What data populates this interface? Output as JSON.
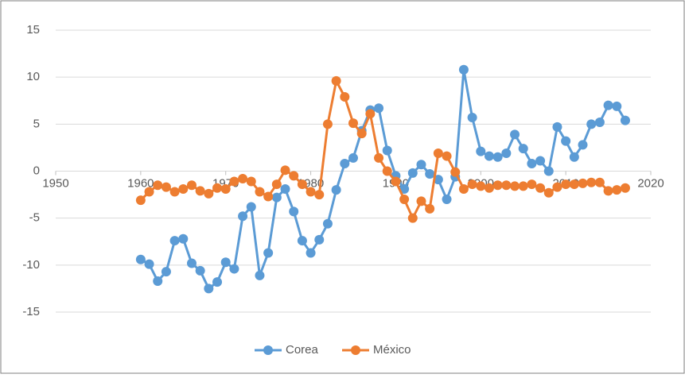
{
  "chart_data": {
    "type": "line",
    "x": [
      1960,
      1961,
      1962,
      1963,
      1964,
      1965,
      1966,
      1967,
      1968,
      1969,
      1970,
      1971,
      1972,
      1973,
      1974,
      1975,
      1976,
      1977,
      1978,
      1979,
      1980,
      1981,
      1982,
      1983,
      1984,
      1985,
      1986,
      1987,
      1988,
      1989,
      1990,
      1991,
      1992,
      1993,
      1994,
      1995,
      1996,
      1997,
      1998,
      1999,
      2000,
      2001,
      2002,
      2003,
      2004,
      2005,
      2006,
      2007,
      2008,
      2009,
      2010,
      2011,
      2012,
      2013,
      2014,
      2015,
      2016,
      2017
    ],
    "series": [
      {
        "name": "Corea",
        "color": "#5b9bd5",
        "values": [
          -9.4,
          -9.9,
          -11.7,
          -10.7,
          -7.4,
          -7.2,
          -9.8,
          -10.6,
          -12.5,
          -11.8,
          -9.7,
          -10.4,
          -4.8,
          -3.8,
          -11.1,
          -8.7,
          -2.8,
          -1.9,
          -4.3,
          -7.4,
          -8.7,
          -7.3,
          -5.6,
          -2.0,
          0.8,
          1.4,
          4.3,
          6.5,
          6.7,
          2.2,
          -0.5,
          -1.9,
          -0.2,
          0.7,
          -0.3,
          -0.9,
          -3.0,
          -0.6,
          10.8,
          5.7,
          2.1,
          1.6,
          1.5,
          1.9,
          3.9,
          2.4,
          0.8,
          1.1,
          0.0,
          4.7,
          3.2,
          1.5,
          2.8,
          5.0,
          5.2,
          7.0,
          6.9,
          5.4
        ]
      },
      {
        "name": "México",
        "color": "#ed7d31",
        "values": [
          -3.1,
          -2.2,
          -1.5,
          -1.7,
          -2.2,
          -1.9,
          -1.5,
          -2.1,
          -2.4,
          -1.8,
          -1.9,
          -1.1,
          -0.8,
          -1.1,
          -2.2,
          -2.7,
          -1.4,
          0.1,
          -0.5,
          -1.4,
          -2.2,
          -2.5,
          5.0,
          9.6,
          7.9,
          5.1,
          4.0,
          6.1,
          1.4,
          0.0,
          -1.1,
          -3.0,
          -5.0,
          -3.2,
          -4.0,
          1.9,
          1.6,
          -0.1,
          -1.9,
          -1.4,
          -1.6,
          -1.8,
          -1.5,
          -1.5,
          -1.6,
          -1.6,
          -1.4,
          -1.8,
          -2.3,
          -1.7,
          -1.4,
          -1.4,
          -1.3,
          -1.2,
          -1.2,
          -2.1,
          -2.0,
          -1.8
        ]
      }
    ],
    "xlim": [
      1950,
      2020
    ],
    "xticks": [
      1950,
      1960,
      1970,
      1980,
      1990,
      2000,
      2010,
      2020
    ],
    "ylim": [
      -15,
      15
    ],
    "yticks": [
      -15,
      -10,
      -5,
      0,
      5,
      10,
      15
    ],
    "grid": true,
    "legend": "bottom"
  }
}
